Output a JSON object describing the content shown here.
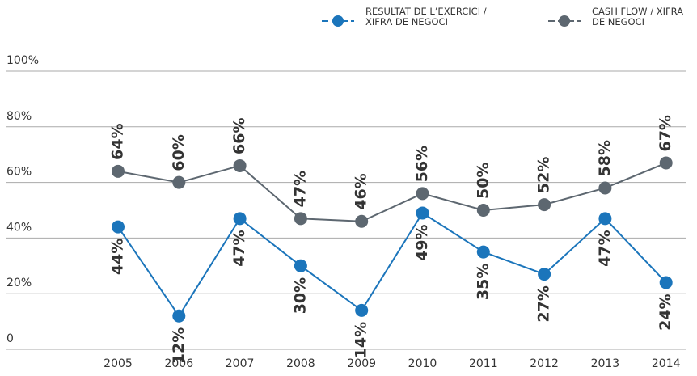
{
  "chart_data": {
    "type": "line",
    "categories": [
      "2005",
      "2006",
      "2007",
      "2008",
      "2009",
      "2010",
      "2011",
      "2012",
      "2013",
      "2014"
    ],
    "series": [
      {
        "name": "RESULTAT DE L’EXERCICI / XIFRA DE NEGOCI",
        "color": "#1b75bb",
        "values": [
          44,
          12,
          47,
          30,
          14,
          49,
          35,
          27,
          47,
          24
        ],
        "value_labels": [
          "44%",
          "12%",
          "47%",
          "30%",
          "14%",
          "49%",
          "35%",
          "27%",
          "47%",
          "24%"
        ]
      },
      {
        "name": "CASH FLOW / XIFRA DE NEGOCI",
        "color": "#5d6770",
        "values": [
          64,
          60,
          66,
          47,
          46,
          56,
          50,
          52,
          58,
          67
        ],
        "value_labels": [
          "64%",
          "60%",
          "66%",
          "47%",
          "46%",
          "56%",
          "50%",
          "52%",
          "58%",
          "67%"
        ]
      }
    ],
    "ylim": [
      0,
      100
    ],
    "yticks": [
      0,
      {
        "value": 20,
        "label": "20%"
      },
      {
        "value": 40,
        "label": "40%"
      },
      {
        "value": 60,
        "label": "60%"
      },
      {
        "value": 80,
        "label": "80%"
      },
      {
        "value": 100,
        "label": "100%"
      }
    ],
    "grid": true,
    "legend": "top-right"
  }
}
